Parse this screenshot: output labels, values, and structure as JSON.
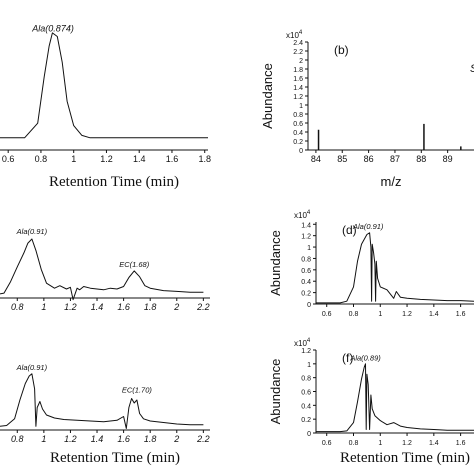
{
  "chart_data": [
    {
      "id": "a",
      "type": "line",
      "panel_label": "",
      "xlabel": "Retention Time (min)",
      "ylabel": "",
      "xlim": [
        0.55,
        1.82
      ],
      "ylim": [
        0,
        1
      ],
      "xticks": [
        "0.6",
        "0.8",
        "1",
        "1.2",
        "1.4",
        "1.6",
        "1.8"
      ],
      "xtick_values": [
        0.6,
        0.8,
        1.0,
        1.2,
        1.4,
        1.6,
        1.8
      ],
      "annotations": [
        {
          "text": "Ala(0.874)",
          "x": 0.874,
          "y": 0.97
        }
      ],
      "series": [
        {
          "x": [
            0.55,
            0.7,
            0.78,
            0.82,
            0.85,
            0.87,
            0.9,
            0.93,
            0.96,
            1.0,
            1.05,
            1.1,
            1.2,
            1.4,
            1.6,
            1.82
          ],
          "y": [
            0.1,
            0.1,
            0.22,
            0.6,
            0.85,
            0.96,
            0.93,
            0.72,
            0.4,
            0.2,
            0.12,
            0.1,
            0.1,
            0.1,
            0.1,
            0.1
          ]
        }
      ]
    },
    {
      "id": "b",
      "type": "bar",
      "panel_label": "(b)",
      "xlabel": "m/z",
      "ylabel": "Abundance",
      "multiplier": "x10^4",
      "xlim": [
        83.7,
        90
      ],
      "ylim": [
        0,
        2.4
      ],
      "xticks": [
        "84",
        "85",
        "86",
        "87",
        "88",
        "89"
      ],
      "xtick_values": [
        84,
        85,
        86,
        87,
        88,
        89
      ],
      "yticks": [
        "0",
        "0.2",
        "0.4",
        "0.6",
        "0.8",
        "1",
        "1.2",
        "1.4",
        "1.6",
        "1.8",
        "2",
        "2.2",
        "2.4"
      ],
      "ytick_values": [
        0,
        0.2,
        0.4,
        0.6,
        0.8,
        1.0,
        1.2,
        1.4,
        1.6,
        1.8,
        2.0,
        2.2,
        2.4
      ],
      "side_text": "S",
      "x": [
        84.1,
        88.1,
        89.5
      ],
      "values": [
        0.45,
        0.58,
        0.08
      ]
    },
    {
      "id": "c",
      "type": "line",
      "panel_label": "",
      "xlabel": "",
      "ylabel": "",
      "xlim": [
        0.67,
        2.25
      ],
      "ylim": [
        0,
        1
      ],
      "xticks": [
        "0.8",
        "1",
        "1.2",
        "1.4",
        "1.6",
        "1.8",
        "2",
        "2.2"
      ],
      "xtick_values": [
        0.8,
        1.0,
        1.2,
        1.4,
        1.6,
        1.8,
        2.0,
        2.2
      ],
      "annotations": [
        {
          "text": "Ala(0.91)",
          "x": 0.91,
          "y": 0.78
        },
        {
          "text": "EC(1.68)",
          "x": 1.68,
          "y": 0.38
        }
      ],
      "series": [
        {
          "x": [
            0.67,
            0.7,
            0.75,
            0.8,
            0.85,
            0.88,
            0.91,
            0.94,
            0.98,
            1.02,
            1.08,
            1.12,
            1.17,
            1.2,
            1.22,
            1.25,
            1.27,
            1.3,
            1.35,
            1.4,
            1.45,
            1.5,
            1.55,
            1.6,
            1.64,
            1.68,
            1.72,
            1.76,
            1.8,
            1.9,
            2.0,
            2.1,
            2.2
          ],
          "y": [
            0.05,
            0.06,
            0.2,
            0.38,
            0.55,
            0.67,
            0.72,
            0.58,
            0.35,
            0.18,
            0.12,
            0.15,
            0.11,
            0.13,
            -0.02,
            0.12,
            0.1,
            0.14,
            0.12,
            0.11,
            0.1,
            0.12,
            0.11,
            0.14,
            0.25,
            0.33,
            0.26,
            0.15,
            0.12,
            0.09,
            0.08,
            0.07,
            0.07
          ]
        }
      ]
    },
    {
      "id": "d",
      "type": "line",
      "panel_label": "(d)",
      "xlabel": "",
      "ylabel": "Abundance",
      "multiplier": "x10^4",
      "xlim": [
        0.52,
        1.7
      ],
      "ylim": [
        0,
        1.44
      ],
      "xticks": [
        "0.6",
        "0.8",
        "1",
        "1.2",
        "1.4",
        "1.6"
      ],
      "xtick_values": [
        0.6,
        0.8,
        1.0,
        1.2,
        1.4,
        1.6
      ],
      "yticks": [
        "0",
        "0.2",
        "0.4",
        "0.6",
        "0.8",
        "1",
        "1.2",
        "1.4"
      ],
      "ytick_values": [
        0,
        0.2,
        0.4,
        0.6,
        0.8,
        1.0,
        1.2,
        1.4
      ],
      "annotations": [
        {
          "text": "Ala(0.91)",
          "x": 0.91,
          "y": 1.32
        }
      ],
      "series": [
        {
          "x": [
            0.52,
            0.6,
            0.7,
            0.75,
            0.8,
            0.83,
            0.86,
            0.9,
            0.92,
            0.93,
            0.935,
            0.94,
            0.95,
            0.96,
            0.965,
            0.97,
            0.98,
            1.0,
            1.05,
            1.1,
            1.12,
            1.15,
            1.2,
            1.3,
            1.4,
            1.5,
            1.6,
            1.7
          ],
          "y": [
            0.02,
            0.02,
            0.02,
            0.05,
            0.3,
            0.75,
            1.05,
            1.22,
            1.25,
            1.0,
            0.05,
            1.05,
            0.9,
            0.7,
            0.05,
            0.75,
            0.45,
            0.3,
            0.25,
            0.1,
            0.22,
            0.12,
            0.1,
            0.08,
            0.07,
            0.06,
            0.06,
            0.05
          ]
        }
      ]
    },
    {
      "id": "e",
      "type": "line",
      "panel_label": "",
      "xlabel": "Retention Time (min)",
      "ylabel": "",
      "xlim": [
        0.67,
        2.25
      ],
      "ylim": [
        0,
        1
      ],
      "xticks": [
        "0.8",
        "1",
        "1.2",
        "1.4",
        "1.6",
        "1.8",
        "2",
        "2.2"
      ],
      "xtick_values": [
        0.8,
        1.0,
        1.2,
        1.4,
        1.6,
        1.8,
        2.0,
        2.2
      ],
      "annotations": [
        {
          "text": "Ala(0.91)",
          "x": 0.91,
          "y": 0.8
        },
        {
          "text": "EC(1.70)",
          "x": 1.7,
          "y": 0.5
        }
      ],
      "series": [
        {
          "x": [
            0.67,
            0.72,
            0.78,
            0.82,
            0.86,
            0.89,
            0.91,
            0.93,
            0.94,
            0.95,
            0.97,
            0.99,
            1.02,
            1.08,
            1.15,
            1.25,
            1.35,
            1.45,
            1.55,
            1.6,
            1.62,
            1.64,
            1.66,
            1.68,
            1.7,
            1.72,
            1.75,
            1.8,
            1.9,
            2.0,
            2.1,
            2.2
          ],
          "y": [
            0.05,
            0.06,
            0.15,
            0.4,
            0.62,
            0.72,
            0.75,
            0.55,
            0.05,
            0.3,
            0.38,
            0.28,
            0.2,
            0.16,
            0.14,
            0.13,
            0.12,
            0.11,
            0.13,
            0.18,
            0.02,
            0.3,
            0.42,
            0.36,
            0.4,
            0.22,
            0.15,
            0.12,
            0.1,
            0.08,
            0.07,
            0.07
          ]
        }
      ]
    },
    {
      "id": "f",
      "type": "line",
      "panel_label": "(f)",
      "xlabel": "Retention Time (min)",
      "ylabel": "Abundance",
      "multiplier": "x10^4",
      "xlim": [
        0.52,
        1.7
      ],
      "ylim": [
        0,
        1.2
      ],
      "xticks": [
        "0.6",
        "0.8",
        "1",
        "1.2",
        "1.4",
        "1.6"
      ],
      "xtick_values": [
        0.6,
        0.8,
        1.0,
        1.2,
        1.4,
        1.6
      ],
      "yticks": [
        "0",
        "0.2",
        "0.4",
        "0.6",
        "0.8",
        "1",
        "1.2"
      ],
      "ytick_values": [
        0,
        0.2,
        0.4,
        0.6,
        0.8,
        1.0,
        1.2
      ],
      "annotations": [
        {
          "text": "Ala(0.89)",
          "x": 0.89,
          "y": 1.05
        }
      ],
      "series": [
        {
          "x": [
            0.52,
            0.6,
            0.7,
            0.75,
            0.8,
            0.83,
            0.86,
            0.88,
            0.89,
            0.895,
            0.9,
            0.91,
            0.92,
            0.93,
            0.94,
            0.96,
            1.0,
            1.05,
            1.1,
            1.15,
            1.2,
            1.3,
            1.4,
            1.5,
            1.6,
            1.7
          ],
          "y": [
            0.02,
            0.02,
            0.02,
            0.03,
            0.15,
            0.45,
            0.78,
            0.95,
            1.0,
            0.05,
            0.85,
            0.7,
            0.05,
            0.55,
            0.35,
            0.25,
            0.18,
            0.12,
            0.15,
            0.1,
            0.08,
            0.06,
            0.05,
            0.04,
            0.04,
            0.04
          ]
        }
      ]
    }
  ]
}
